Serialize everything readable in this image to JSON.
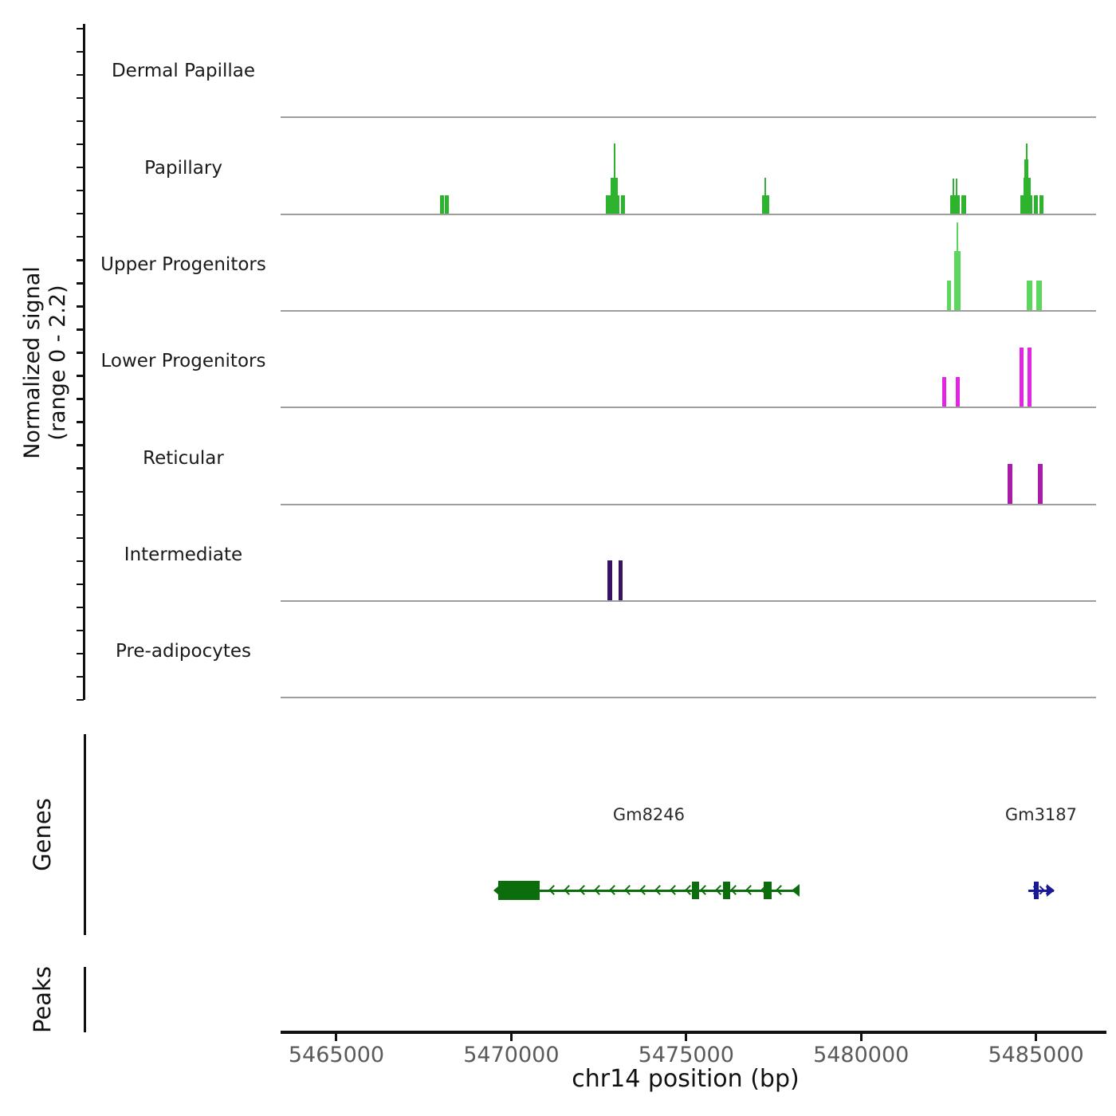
{
  "figure": {
    "y_axis_label_line1": "Normalized signal",
    "y_axis_label_line2": "(range 0 - 2.2)",
    "genes_section_label": "Genes",
    "peaks_section_label": "Peaks",
    "x_axis_label": "chr14 position (bp)"
  },
  "chart_data": {
    "type": "area",
    "subtype": "genome_signal_tracks",
    "region": {
      "chrom": "chr14",
      "start_bp": 5463405,
      "end_bp": 5486720
    },
    "signal_range": [
      0,
      2.2
    ],
    "x_ticks": [
      5465000,
      5470000,
      5475000,
      5480000,
      5485000
    ],
    "x_tick_labels": [
      "5465000",
      "5470000",
      "5475000",
      "5480000",
      "5485000"
    ],
    "tracks": [
      {
        "label": "Dermal Papillae",
        "peaks": []
      },
      {
        "label": "Papillary",
        "color": "#2eb32e",
        "peaks": [
          {
            "start": 5467965,
            "end": 5468075,
            "value": 0.45
          },
          {
            "start": 5468110,
            "end": 5468215,
            "value": 0.45
          },
          {
            "start": 5472700,
            "end": 5473100,
            "value": 0.45
          },
          {
            "start": 5472840,
            "end": 5473045,
            "value": 0.9
          },
          {
            "start": 5472920,
            "end": 5472965,
            "value": 1.76
          },
          {
            "start": 5473135,
            "end": 5473250,
            "value": 0.45
          },
          {
            "start": 5477170,
            "end": 5477375,
            "value": 0.45
          },
          {
            "start": 5477240,
            "end": 5477295,
            "value": 0.9
          },
          {
            "start": 5482550,
            "end": 5482820,
            "value": 0.45
          },
          {
            "start": 5482615,
            "end": 5482660,
            "value": 0.87
          },
          {
            "start": 5482705,
            "end": 5482750,
            "value": 0.87
          },
          {
            "start": 5482870,
            "end": 5483005,
            "value": 0.45
          },
          {
            "start": 5484555,
            "end": 5484905,
            "value": 0.45
          },
          {
            "start": 5484645,
            "end": 5484850,
            "value": 0.9
          },
          {
            "start": 5484670,
            "end": 5484785,
            "value": 1.35
          },
          {
            "start": 5484715,
            "end": 5484760,
            "value": 1.76
          },
          {
            "start": 5484940,
            "end": 5485055,
            "value": 0.45
          },
          {
            "start": 5485100,
            "end": 5485205,
            "value": 0.45
          }
        ]
      },
      {
        "label": "Upper Progenitors",
        "color": "#5cd65c",
        "peaks": [
          {
            "start": 5482460,
            "end": 5482570,
            "value": 0.74
          },
          {
            "start": 5482660,
            "end": 5482845,
            "value": 1.48
          },
          {
            "start": 5482730,
            "end": 5482775,
            "value": 2.2
          },
          {
            "start": 5484735,
            "end": 5484895,
            "value": 0.74
          },
          {
            "start": 5485020,
            "end": 5485170,
            "value": 0.74
          }
        ]
      },
      {
        "label": "Lower Progenitors",
        "color": "#e424e4",
        "peaks": [
          {
            "start": 5482320,
            "end": 5482435,
            "value": 0.74
          },
          {
            "start": 5482705,
            "end": 5482820,
            "value": 0.74
          },
          {
            "start": 5484530,
            "end": 5484645,
            "value": 1.48
          },
          {
            "start": 5484760,
            "end": 5484875,
            "value": 1.48
          }
        ]
      },
      {
        "label": "Reticular",
        "color": "#a81ca8",
        "peaks": [
          {
            "start": 5484180,
            "end": 5484325,
            "value": 1.0
          },
          {
            "start": 5485055,
            "end": 5485190,
            "value": 1.0
          }
        ]
      },
      {
        "label": "Intermediate",
        "color": "#3a1264",
        "peaks": [
          {
            "start": 5472760,
            "end": 5472885,
            "value": 1.0
          },
          {
            "start": 5473070,
            "end": 5473185,
            "value": 1.0
          }
        ]
      },
      {
        "label": "Pre-adipocytes",
        "peaks": []
      }
    ],
    "genes": [
      {
        "name": "Gm8246",
        "strand": "-",
        "color": "#0b6d0b",
        "start_bp": 5469625,
        "end_bp": 5478240,
        "exons": [
          {
            "start": 5469625,
            "end": 5470810,
            "thick": true
          },
          {
            "start": 5475165,
            "end": 5475370
          },
          {
            "start": 5476055,
            "end": 5476250
          },
          {
            "start": 5477215,
            "end": 5477445
          }
        ]
      },
      {
        "name": "Gm3187",
        "strand": "+",
        "color": "#1a1a99",
        "start_bp": 5484780,
        "end_bp": 5485510,
        "exons": [
          {
            "start": 5484940,
            "end": 5485070
          }
        ]
      }
    ],
    "peaks_track": {
      "items": []
    }
  }
}
